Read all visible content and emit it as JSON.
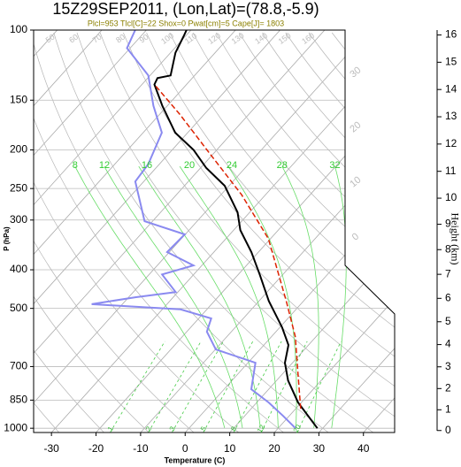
{
  "chart_data": {
    "type": "skewt",
    "title": "15Z29SEP2011, (Lon,Lat)=(78.8,-5.9)",
    "subtitle": "Plcl=953 Tlcl[C]=22 Shox=0 Pwat[cm]=5 Cape[J]= 1803",
    "xlabel": "Temperature (C)",
    "ylabel": "P (hPa)",
    "y2label": "Height (km)",
    "xlim": [
      -34,
      47
    ],
    "ylim": [
      100,
      1025
    ],
    "log_y": true,
    "xticks": [
      -30,
      -20,
      -10,
      0,
      10,
      20,
      30,
      40
    ],
    "yticks": [
      100,
      150,
      200,
      250,
      300,
      400,
      500,
      700,
      850,
      1000
    ],
    "y2ticks": [
      0,
      1,
      2,
      3,
      4,
      5,
      6,
      7,
      8,
      9,
      10,
      11,
      12,
      13,
      14,
      15,
      16
    ],
    "grid": true,
    "series": [
      {
        "color": "#000000",
        "dash": false,
        "pressure": [
          1000,
          862,
          759,
          685,
          618,
          558,
          479,
          411,
          361,
          318,
          287,
          246,
          222,
          200,
          181,
          155,
          137,
          132,
          130,
          114,
          103,
          100
        ],
        "values": [
          28.8,
          19.3,
          12.6,
          8.3,
          5.5,
          0.5,
          -7.8,
          -15.2,
          -21.6,
          -28.5,
          -32.7,
          -41.0,
          -48.7,
          -55.2,
          -62.8,
          -71.1,
          -77.2,
          -77.8,
          -75.4,
          -78.9,
          -80.5,
          -81.0
        ]
      },
      {
        "color": "#8a8af0",
        "dash": false,
        "pressure": [
          1000,
          931,
          862,
          798,
          685,
          634,
          572,
          530,
          503,
          488,
          469,
          455,
          411,
          390,
          361,
          326,
          302,
          240,
          217,
          181,
          155,
          130,
          111,
          100
        ],
        "values": [
          23.9,
          18.6,
          12.7,
          6.1,
          1.7,
          -9.9,
          -15.5,
          -17.2,
          -25.9,
          -46.9,
          -38.5,
          -30.5,
          -37.1,
          -31.9,
          -40.5,
          -40.1,
          -51.8,
          -61.9,
          -62.5,
          -65.8,
          -73.1,
          -80.4,
          -90.7,
          -92.5
        ]
      },
      {
        "color": "#dd2200",
        "dash": true,
        "pressure": [
          893,
          721,
          588,
          479,
          334,
          259,
          200,
          163,
          137
        ],
        "values": [
          21.1,
          13.0,
          5.3,
          -3.9,
          -20.5,
          -35.4,
          -52.2,
          -65.4,
          -77.2
        ]
      }
    ],
    "moist_adiabat_labels": [
      8,
      12,
      16,
      20,
      24,
      28,
      32
    ],
    "mixing_ratio_labels": [
      1,
      2,
      3,
      5,
      8,
      12,
      20
    ],
    "dry_adiabat_labels": [
      50,
      60,
      70,
      80,
      90,
      100,
      110,
      120,
      130,
      140,
      150,
      160
    ],
    "isotherm_labels": [
      30,
      20,
      10,
      0
    ]
  }
}
